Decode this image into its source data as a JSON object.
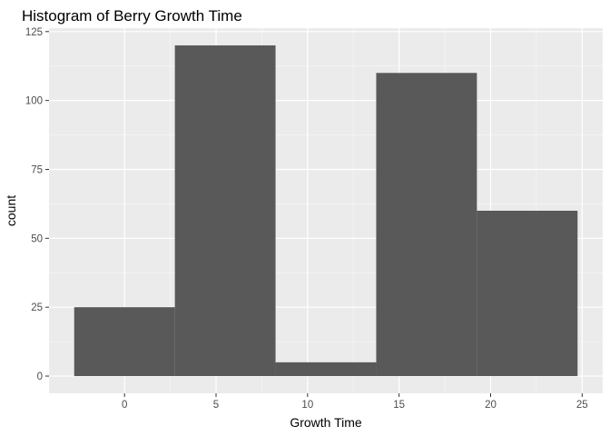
{
  "chart_data": {
    "type": "bar",
    "title": "Histogram of Berry Growth Time",
    "xlabel": "Growth Time",
    "ylabel": "count",
    "bins": [
      {
        "x_start": -2.75,
        "x_end": 2.75,
        "count": 25
      },
      {
        "x_start": 2.75,
        "x_end": 8.25,
        "count": 120
      },
      {
        "x_start": 8.25,
        "x_end": 13.75,
        "count": 5
      },
      {
        "x_start": 13.75,
        "x_end": 19.25,
        "count": 110
      },
      {
        "x_start": 19.25,
        "x_end": 24.75,
        "count": 60
      }
    ],
    "xlim": [
      -4.125,
      26.125
    ],
    "ylim": [
      -6.25,
      126.25
    ],
    "x_ticks": [
      0,
      5,
      10,
      15,
      20,
      25
    ],
    "y_ticks": [
      0,
      25,
      50,
      75,
      100,
      125
    ],
    "grid": true,
    "legend": "none",
    "colors": {
      "panel_background": "#ebebeb",
      "grid_major": "#ffffff",
      "grid_minor": "#f5f5f5",
      "bar_fill": "#595959",
      "tick_mark": "#333333",
      "tick_label": "#4d4d4d"
    }
  }
}
